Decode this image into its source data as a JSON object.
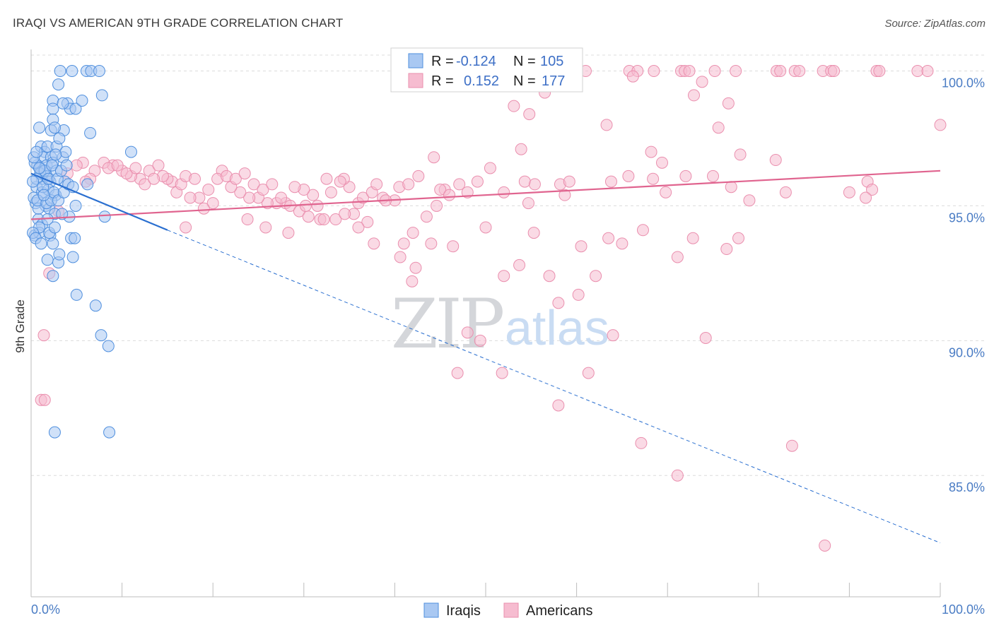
{
  "title": "IRAQI VS AMERICAN 9TH GRADE CORRELATION CHART",
  "source": "Source: ZipAtlas.com",
  "watermark": {
    "zip": "ZIP",
    "atlas": "atlas"
  },
  "colors": {
    "iraqis_fill": "#a9c8f2",
    "iraqis_stroke": "#4f8fde",
    "iraqis_line": "#2a6fd0",
    "americans_fill": "#f6bcd0",
    "americans_stroke": "#ea8fae",
    "americans_line": "#e0648f",
    "grid": "#dcdcdc",
    "tick_text": "#4a7cc4"
  },
  "legend": {
    "rows": [
      {
        "r_label": "R =",
        "r_value": "-0.124",
        "n_label": "N =",
        "n_value": "105"
      },
      {
        "r_label": "R =",
        "r_value": "0.152",
        "n_label": "N =",
        "n_value": "177"
      }
    ],
    "bottom": [
      {
        "label": "Iraqis"
      },
      {
        "label": "Americans"
      }
    ]
  },
  "chart_data": {
    "type": "scatter",
    "xlabel": "",
    "ylabel": "9th Grade",
    "xlim": [
      0,
      100
    ],
    "ylim": [
      80.5,
      100.8
    ],
    "x_tick_labels": [
      "0.0%",
      "100.0%"
    ],
    "y_ticks": [
      85,
      90,
      95,
      100
    ],
    "y_tick_labels": [
      "85.0%",
      "90.0%",
      "95.0%",
      "100.0%"
    ],
    "grid": true,
    "legend_position": "top-center",
    "series": [
      {
        "name": "Iraqis",
        "r": -0.124,
        "n": 105,
        "trend": {
          "x": [
            0,
            15
          ],
          "y": [
            96.2,
            94.1
          ],
          "dashed_to": {
            "x": 100,
            "y": 82.5
          }
        },
        "points": [
          [
            3.2,
            100.0
          ],
          [
            4.5,
            100.0
          ],
          [
            6.1,
            100.0
          ],
          [
            6.6,
            100.0
          ],
          [
            7.5,
            100.0
          ],
          [
            3.0,
            99.5
          ],
          [
            2.4,
            98.9
          ],
          [
            4.0,
            98.8
          ],
          [
            4.3,
            98.6
          ],
          [
            4.9,
            98.6
          ],
          [
            5.6,
            98.9
          ],
          [
            7.8,
            99.1
          ],
          [
            2.4,
            98.6
          ],
          [
            3.5,
            98.8
          ],
          [
            0.9,
            97.9
          ],
          [
            2.2,
            97.8
          ],
          [
            3.6,
            97.8
          ],
          [
            6.5,
            97.7
          ],
          [
            2.4,
            98.2
          ],
          [
            2.6,
            97.9
          ],
          [
            1.1,
            97.2
          ],
          [
            1.5,
            97.0
          ],
          [
            1.8,
            97.2
          ],
          [
            2.8,
            97.2
          ],
          [
            3.1,
            97.5
          ],
          [
            1.3,
            96.8
          ],
          [
            2.2,
            96.8
          ],
          [
            3.5,
            96.8
          ],
          [
            3.8,
            97.0
          ],
          [
            0.7,
            96.5
          ],
          [
            1.0,
            96.4
          ],
          [
            1.4,
            96.3
          ],
          [
            1.7,
            96.5
          ],
          [
            2.4,
            96.6
          ],
          [
            2.8,
            96.3
          ],
          [
            1.2,
            96.0
          ],
          [
            1.6,
            96.1
          ],
          [
            2.1,
            95.9
          ],
          [
            3.7,
            95.9
          ],
          [
            0.6,
            95.7
          ],
          [
            1.2,
            95.5
          ],
          [
            1.9,
            95.6
          ],
          [
            2.7,
            95.4
          ],
          [
            0.5,
            95.1
          ],
          [
            1.6,
            95.0
          ],
          [
            2.0,
            94.9
          ],
          [
            2.6,
            94.7
          ],
          [
            4.9,
            95.0
          ],
          [
            0.8,
            94.5
          ],
          [
            1.2,
            94.3
          ],
          [
            1.8,
            94.5
          ],
          [
            4.2,
            94.6
          ],
          [
            8.1,
            94.6
          ],
          [
            0.4,
            93.9
          ],
          [
            0.9,
            94.0
          ],
          [
            2.1,
            93.9
          ],
          [
            2.4,
            93.6
          ],
          [
            4.4,
            93.8
          ],
          [
            4.8,
            93.8
          ],
          [
            1.8,
            93.0
          ],
          [
            3.0,
            92.9
          ],
          [
            4.6,
            93.1
          ],
          [
            2.4,
            92.4
          ],
          [
            5.0,
            91.7
          ],
          [
            7.1,
            91.3
          ],
          [
            7.7,
            90.2
          ],
          [
            8.5,
            89.8
          ],
          [
            11.0,
            97.0
          ],
          [
            6.2,
            95.8
          ],
          [
            2.6,
            86.6
          ],
          [
            8.6,
            86.6
          ],
          [
            0.8,
            94.9
          ],
          [
            1.0,
            96.2
          ],
          [
            0.3,
            95.3
          ],
          [
            0.4,
            96.6
          ],
          [
            0.6,
            96.0
          ],
          [
            0.7,
            95.2
          ],
          [
            0.9,
            94.2
          ],
          [
            1.3,
            95.7
          ],
          [
            1.5,
            96.3
          ],
          [
            1.7,
            95.1
          ],
          [
            1.9,
            96.0
          ],
          [
            2.0,
            94.0
          ],
          [
            2.2,
            95.2
          ],
          [
            2.3,
            96.5
          ],
          [
            2.5,
            95.5
          ],
          [
            2.6,
            94.2
          ],
          [
            2.9,
            96.0
          ],
          [
            3.0,
            95.2
          ],
          [
            3.3,
            96.3
          ],
          [
            3.4,
            94.7
          ],
          [
            3.6,
            95.5
          ],
          [
            3.9,
            96.5
          ],
          [
            4.1,
            95.8
          ],
          [
            4.6,
            95.7
          ],
          [
            0.2,
            94.0
          ],
          [
            0.5,
            93.8
          ],
          [
            0.3,
            96.8
          ],
          [
            1.1,
            93.6
          ],
          [
            0.6,
            97.0
          ],
          [
            3.1,
            93.2
          ],
          [
            0.9,
            96.4
          ],
          [
            1.4,
            95.4
          ],
          [
            2.7,
            96.9
          ],
          [
            0.2,
            95.9
          ]
        ]
      },
      {
        "name": "Americans",
        "r": 0.152,
        "n": 177,
        "trend": {
          "x": [
            0,
            100
          ],
          "y": [
            94.5,
            96.3
          ]
        },
        "points": [
          [
            61.0,
            100.0
          ],
          [
            65.8,
            100.0
          ],
          [
            66.7,
            100.0
          ],
          [
            68.5,
            100.0
          ],
          [
            71.5,
            100.0
          ],
          [
            71.9,
            100.0
          ],
          [
            72.4,
            100.0
          ],
          [
            75.2,
            100.0
          ],
          [
            77.5,
            100.0
          ],
          [
            82.0,
            100.0
          ],
          [
            82.4,
            100.0
          ],
          [
            84.0,
            100.0
          ],
          [
            84.5,
            100.0
          ],
          [
            87.1,
            100.0
          ],
          [
            88.0,
            100.0
          ],
          [
            88.3,
            100.0
          ],
          [
            93.0,
            100.0
          ],
          [
            93.3,
            100.0
          ],
          [
            97.5,
            100.0
          ],
          [
            98.6,
            100.0
          ],
          [
            66.2,
            99.8
          ],
          [
            73.8,
            99.6
          ],
          [
            56.5,
            99.2
          ],
          [
            72.9,
            99.1
          ],
          [
            53.1,
            98.7
          ],
          [
            76.7,
            98.8
          ],
          [
            54.8,
            98.4
          ],
          [
            75.6,
            97.9
          ],
          [
            63.3,
            98.0
          ],
          [
            100.0,
            98.0
          ],
          [
            53.9,
            97.1
          ],
          [
            68.2,
            97.0
          ],
          [
            78.0,
            96.9
          ],
          [
            69.4,
            96.6
          ],
          [
            81.9,
            96.7
          ],
          [
            44.3,
            96.8
          ],
          [
            50.5,
            96.4
          ],
          [
            44.6,
            95.0
          ],
          [
            42.6,
            96.1
          ],
          [
            45.5,
            95.6
          ],
          [
            47.1,
            95.8
          ],
          [
            48.0,
            95.5
          ],
          [
            45.0,
            95.6
          ],
          [
            49.1,
            95.9
          ],
          [
            54.3,
            95.9
          ],
          [
            54.7,
            95.1
          ],
          [
            55.4,
            95.8
          ],
          [
            58.2,
            95.8
          ],
          [
            58.7,
            95.4
          ],
          [
            59.2,
            95.9
          ],
          [
            63.8,
            95.9
          ],
          [
            65.7,
            96.1
          ],
          [
            68.4,
            96.0
          ],
          [
            69.8,
            95.5
          ],
          [
            72.0,
            96.1
          ],
          [
            75.0,
            96.1
          ],
          [
            77.0,
            95.7
          ],
          [
            79.0,
            95.2
          ],
          [
            83.0,
            95.5
          ],
          [
            90.0,
            95.5
          ],
          [
            92.0,
            95.9
          ],
          [
            92.5,
            95.6
          ],
          [
            91.8,
            95.3
          ],
          [
            40.0,
            95.2
          ],
          [
            40.5,
            95.7
          ],
          [
            38.7,
            95.3
          ],
          [
            37.0,
            94.4
          ],
          [
            36.0,
            95.1
          ],
          [
            35.0,
            95.7
          ],
          [
            34.4,
            96.0
          ],
          [
            34.0,
            95.9
          ],
          [
            33.0,
            95.5
          ],
          [
            31.0,
            95.4
          ],
          [
            31.5,
            95.0
          ],
          [
            30.0,
            95.6
          ],
          [
            29.0,
            95.7
          ],
          [
            28.0,
            95.1
          ],
          [
            27.0,
            95.1
          ],
          [
            26.0,
            95.1
          ],
          [
            25.0,
            95.3
          ],
          [
            24.0,
            95.3
          ],
          [
            23.0,
            95.5
          ],
          [
            22.0,
            95.7
          ],
          [
            21.0,
            96.3
          ],
          [
            20.0,
            95.1
          ],
          [
            19.0,
            94.9
          ],
          [
            18.5,
            95.3
          ],
          [
            17.5,
            95.3
          ],
          [
            16.0,
            95.5
          ],
          [
            15.5,
            95.9
          ],
          [
            15.0,
            96.0
          ],
          [
            14.5,
            96.1
          ],
          [
            13.0,
            96.3
          ],
          [
            12.0,
            96.0
          ],
          [
            11.0,
            96.1
          ],
          [
            10.0,
            96.3
          ],
          [
            9.0,
            96.5
          ],
          [
            8.0,
            96.6
          ],
          [
            7.0,
            96.3
          ],
          [
            6.5,
            96.0
          ],
          [
            5.7,
            96.6
          ],
          [
            5.0,
            96.5
          ],
          [
            4.0,
            96.2
          ],
          [
            6.0,
            95.9
          ],
          [
            8.5,
            96.4
          ],
          [
            9.5,
            96.5
          ],
          [
            10.5,
            96.2
          ],
          [
            11.5,
            96.4
          ],
          [
            12.5,
            95.8
          ],
          [
            13.5,
            96.0
          ],
          [
            14.0,
            96.5
          ],
          [
            16.5,
            95.8
          ],
          [
            17.0,
            96.1
          ],
          [
            18.0,
            96.0
          ],
          [
            19.5,
            95.6
          ],
          [
            20.5,
            96.0
          ],
          [
            21.5,
            96.1
          ],
          [
            22.5,
            96.0
          ],
          [
            23.5,
            96.2
          ],
          [
            24.5,
            95.8
          ],
          [
            25.5,
            95.6
          ],
          [
            26.5,
            95.8
          ],
          [
            27.5,
            95.3
          ],
          [
            28.5,
            95.0
          ],
          [
            29.5,
            94.8
          ],
          [
            30.5,
            94.6
          ],
          [
            31.8,
            94.5
          ],
          [
            32.5,
            96.0
          ],
          [
            33.5,
            94.5
          ],
          [
            35.5,
            94.7
          ],
          [
            36.5,
            95.3
          ],
          [
            37.5,
            95.5
          ],
          [
            38.0,
            95.8
          ],
          [
            39.0,
            95.2
          ],
          [
            41.5,
            95.8
          ],
          [
            42.0,
            94.0
          ],
          [
            43.5,
            94.6
          ],
          [
            46.0,
            95.4
          ],
          [
            50.0,
            94.2
          ],
          [
            52.0,
            95.5
          ],
          [
            23.8,
            94.5
          ],
          [
            25.8,
            94.2
          ],
          [
            28.3,
            94.0
          ],
          [
            30.2,
            95.0
          ],
          [
            32.2,
            94.5
          ],
          [
            34.5,
            94.7
          ],
          [
            36.0,
            94.2
          ],
          [
            17.0,
            94.2
          ],
          [
            41.0,
            93.6
          ],
          [
            37.7,
            93.6
          ],
          [
            44.0,
            93.6
          ],
          [
            46.4,
            93.5
          ],
          [
            55.3,
            94.0
          ],
          [
            60.5,
            93.5
          ],
          [
            63.5,
            93.8
          ],
          [
            65.0,
            93.6
          ],
          [
            67.3,
            94.1
          ],
          [
            72.8,
            93.8
          ],
          [
            76.5,
            93.4
          ],
          [
            77.8,
            93.8
          ],
          [
            52.0,
            92.4
          ],
          [
            57.0,
            92.4
          ],
          [
            62.1,
            92.4
          ],
          [
            71.1,
            93.1
          ],
          [
            53.7,
            92.8
          ],
          [
            42.3,
            92.7
          ],
          [
            40.6,
            93.1
          ],
          [
            41.9,
            92.2
          ],
          [
            58.0,
            91.4
          ],
          [
            60.2,
            91.7
          ],
          [
            48.0,
            90.3
          ],
          [
            49.4,
            90.0
          ],
          [
            64.0,
            90.2
          ],
          [
            74.2,
            90.1
          ],
          [
            46.9,
            88.8
          ],
          [
            51.8,
            88.8
          ],
          [
            61.3,
            88.8
          ],
          [
            58.0,
            87.6
          ],
          [
            67.1,
            86.2
          ],
          [
            83.7,
            86.1
          ],
          [
            71.1,
            85.0
          ],
          [
            87.3,
            82.4
          ],
          [
            1.1,
            87.8
          ],
          [
            1.5,
            87.8
          ],
          [
            1.4,
            90.2
          ],
          [
            2.0,
            92.5
          ],
          [
            3.0,
            94.8
          ]
        ]
      }
    ]
  }
}
